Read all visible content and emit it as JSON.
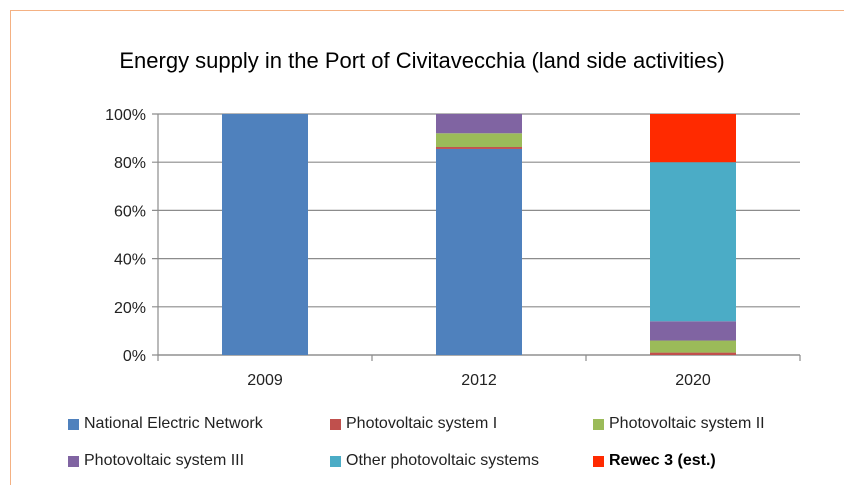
{
  "chart_data": {
    "type": "bar",
    "stacked": true,
    "title": "Energy supply in the Port of Civitavecchia (land side activities)",
    "xlabel": "",
    "ylabel": "",
    "categories": [
      "2009",
      "2012",
      "2020"
    ],
    "ylim": [
      0,
      100
    ],
    "yticks": [
      "0%",
      "20%",
      "40%",
      "60%",
      "80%",
      "100%"
    ],
    "grid": true,
    "legend_position": "bottom",
    "series": [
      {
        "name": "National Electric Network",
        "color": "#4f81bd",
        "values": [
          100,
          85.5,
          0
        ]
      },
      {
        "name": "Photovoltaic system I",
        "color": "#c0504d",
        "values": [
          0,
          0.8,
          1
        ]
      },
      {
        "name": "Photovoltaic system II",
        "color": "#9bbb59",
        "values": [
          0,
          5.7,
          5
        ]
      },
      {
        "name": "Photovoltaic system III",
        "color": "#8064a2",
        "values": [
          0,
          8,
          8
        ]
      },
      {
        "name": "Other photovoltaic systems",
        "color": "#4bacc6",
        "values": [
          0,
          0,
          66
        ]
      },
      {
        "name": "Rewec 3 (est.)",
        "color": "#ff2a00",
        "values": [
          0,
          0,
          20
        ]
      }
    ]
  }
}
